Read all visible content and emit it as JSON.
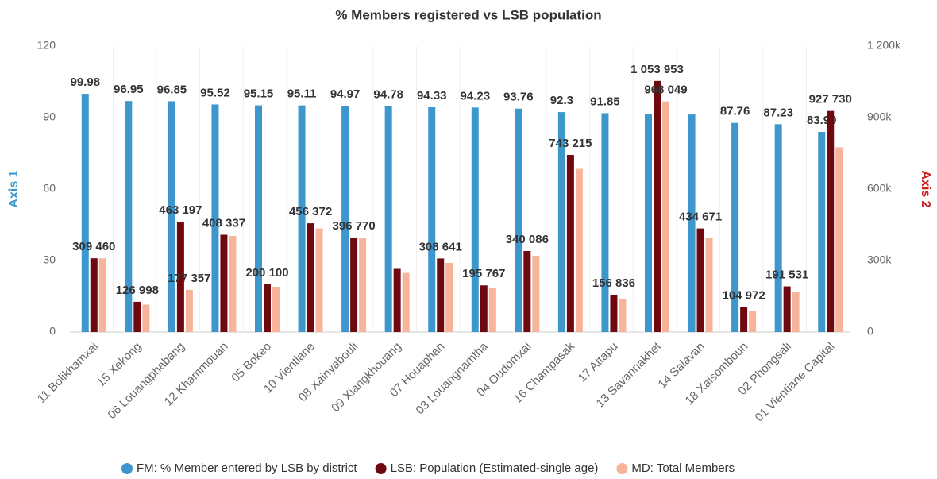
{
  "chart_data": {
    "type": "bar",
    "title": "% Members registered vs LSB population",
    "y_label": "Axis 1",
    "y2_label": "Axis 2",
    "categories": [
      "11 Bolikhamxai",
      "15 Xekong",
      "06 Louangphabang",
      "12 Khammouan",
      "05 Bokeo",
      "10 Vientiane",
      "08 Xainyabouli",
      "09 Xiangkhouang",
      "07 Houaphan",
      "03 Louangnamtha",
      "04 Oudomxai",
      "16 Champasak",
      "17 Attapu",
      "13 Savannakhet",
      "14 Salavan",
      "18 Xaisomboun",
      "02 Phongsali",
      "01 Vientiane Capital"
    ],
    "series": [
      {
        "name": "FM: % Member entered by LSB by district",
        "color": "#3d97cd",
        "axis": "y",
        "values": [
          99.98,
          96.95,
          96.85,
          95.52,
          95.15,
          95.11,
          94.97,
          94.78,
          94.33,
          94.23,
          93.76,
          92.3,
          91.85,
          91.7,
          91.3,
          87.76,
          87.23,
          83.99
        ],
        "value_labels": [
          "99.98",
          "96.95",
          "96.85",
          "95.52",
          "95.15",
          "95.11",
          "94.97",
          "94.78",
          "94.33",
          "94.23",
          "93.76",
          "92.3",
          "91.85",
          null,
          null,
          "87.76",
          "87.23",
          "83.99"
        ]
      },
      {
        "name": "LSB: Population (Estimated-single age)",
        "color": "#6e0a0f",
        "axis": "y2",
        "values": [
          309460,
          126998,
          463197,
          408337,
          200100,
          456372,
          396770,
          265000,
          308641,
          195767,
          340086,
          743215,
          156836,
          1053953,
          434671,
          104972,
          191531,
          927730
        ],
        "value_labels": [
          "309 460",
          "126 998",
          "463 197",
          "408 337",
          "200 100",
          "456 372",
          "396 770",
          null,
          "308 641",
          "195 767",
          "340 086",
          "743 215",
          "156 836",
          "1 053 953",
          "434 671",
          "104 972",
          "191 531",
          "927 730"
        ]
      },
      {
        "name": "MD: Total Members",
        "color": "#f7b49b",
        "axis": "y2",
        "values": [
          309000,
          115000,
          177357,
          403000,
          190000,
          435000,
          395000,
          248000,
          290000,
          185000,
          320000,
          685000,
          140000,
          968049,
          395000,
          88000,
          168000,
          775000
        ],
        "value_labels": [
          null,
          null,
          "177 357",
          null,
          null,
          null,
          null,
          null,
          null,
          null,
          null,
          null,
          null,
          "968 049",
          null,
          null,
          null,
          null
        ]
      }
    ],
    "ylim": [
      0,
      120
    ],
    "yticks": [
      0,
      30,
      60,
      90,
      120
    ],
    "y2lim": [
      0,
      1200000
    ],
    "y2ticks": [
      0,
      {
        "value": 300000,
        "label": "300k"
      },
      {
        "value": 600000,
        "label": "600k"
      },
      {
        "value": 900000,
        "label": "900k"
      },
      {
        "value": 1200000,
        "label": "1 200k"
      }
    ],
    "legend": "bottom"
  }
}
